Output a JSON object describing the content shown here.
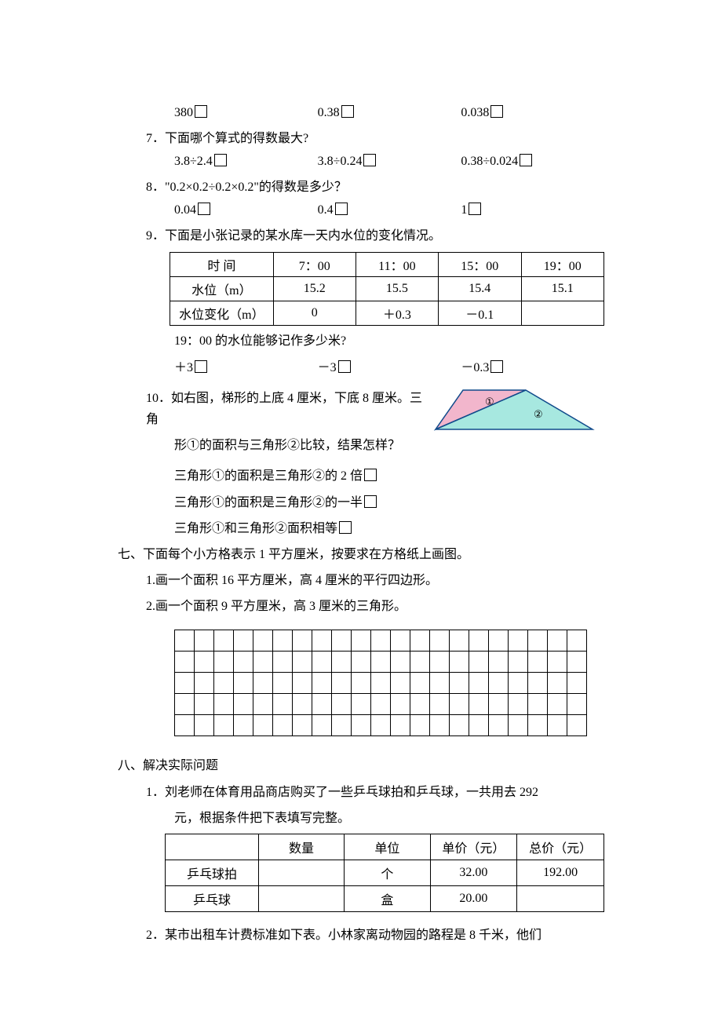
{
  "q6": {
    "opts": [
      "380",
      "0.38",
      "0.038"
    ]
  },
  "q7": {
    "num": "7．",
    "stem": "下面哪个算式的得数最大?",
    "opts": [
      "3.8÷2.4",
      "3.8÷0.24",
      "0.38÷0.024"
    ]
  },
  "q8": {
    "num": "8．",
    "stem": "\"0.2×0.2÷0.2×0.2\"的得数是多少？",
    "opts": [
      "0.04",
      "0.4",
      "1"
    ]
  },
  "q9": {
    "num": "9．",
    "stem": "下面是小张记录的某水库一天内水位的变化情况。",
    "table": {
      "headers": [
        "时    间",
        "7：00",
        "11：00",
        "15：00",
        "19：00"
      ],
      "rows": [
        [
          "水位（m）",
          "15.2",
          "15.5",
          "15.4",
          "15.1"
        ],
        [
          "水位变化（m）",
          "0",
          "＋0.3",
          "－0.1",
          ""
        ]
      ]
    },
    "sub": "19：00 的水位能够记作多少米?",
    "opts": [
      "＋3",
      "－3",
      "－0.3"
    ]
  },
  "q10": {
    "num": "10．",
    "stem1": "如右图，梯形的上底 4 厘米，下底 8 厘米。三角",
    "stem2": "形①的面积与三角形②比较，结果怎样？",
    "opts": [
      "三角形①的面积是三角形②的 2 倍",
      "三角形①的面积是三角形②的一半",
      "三角形①和三角形②面积相等"
    ],
    "fig": {
      "fill1": "#f2b6cc",
      "fill2": "#a7e8e0",
      "stroke": "#104a8b",
      "label1": "①",
      "label2": "②"
    }
  },
  "s7": {
    "num": "七、",
    "stem": "下面每个小方格表示 1 平方厘米，按要求在方格纸上画图。",
    "items": [
      "1.画一个面积 16 平方厘米，高 4 厘米的平行四边形。",
      "2.画一个面积 9 平方厘米，高 3 厘米的三角形。"
    ],
    "grid": {
      "rows": 5,
      "cols": 21
    }
  },
  "s8": {
    "num": "八、",
    "stem": "解决实际问题",
    "q1": {
      "num": "1．",
      "l1": "刘老师在体育用品商店购买了一些乒乓球拍和乒乓球，一共用去 292",
      "l2": "元，根据条件把下表填写完整。",
      "table": {
        "headers": [
          "",
          "数量",
          "单位",
          "单价（元）",
          "总价（元）"
        ],
        "rows": [
          [
            "乒乓球拍",
            "",
            "个",
            "32.00",
            "192.00"
          ],
          [
            "乒乓球",
            "",
            "盒",
            "20.00",
            ""
          ]
        ]
      }
    },
    "q2": {
      "num": "2．",
      "l1": "某市出租车计费标准如下表。小林家离动物园的路程是 8 千米，他们"
    }
  }
}
